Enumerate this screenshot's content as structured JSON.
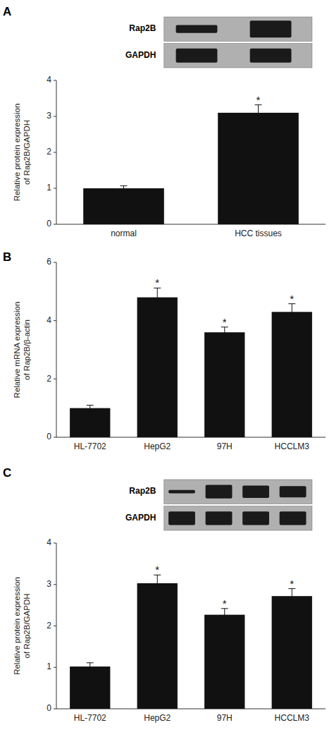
{
  "chart_data": [
    {
      "type": "bar",
      "title": "A",
      "categories": [
        "normal",
        "HCC tissues"
      ],
      "values": [
        1.0,
        3.1
      ],
      "errors": [
        0.07,
        0.22
      ],
      "annotations": [
        null,
        "*"
      ],
      "ylabel": "Relative protein expression\nof Rap2B/GAPDH",
      "ylim": [
        0,
        4
      ],
      "yticks": [
        0,
        1,
        2,
        3,
        4
      ],
      "color": "#111111",
      "grid": false,
      "blot_labels": [
        "Rap2B",
        "GAPDH"
      ],
      "blot_bands": [
        [
          0.14,
          0.3
        ],
        [
          0.25,
          0.25
        ]
      ]
    },
    {
      "type": "bar",
      "title": "B",
      "categories": [
        "HL-7702",
        "HepG2",
        "97H",
        "HCCLM3"
      ],
      "values": [
        1.0,
        4.8,
        3.6,
        4.3
      ],
      "errors": [
        0.1,
        0.32,
        0.18,
        0.28
      ],
      "annotations": [
        null,
        "*",
        "*",
        "*"
      ],
      "ylabel": "Relative mRNA expression\nof Rap2B/β-actin",
      "ylim": [
        0,
        6
      ],
      "yticks": [
        0,
        2,
        4,
        6
      ],
      "color": "#111111",
      "grid": false
    },
    {
      "type": "bar",
      "title": "C",
      "categories": [
        "HL-7702",
        "HepG2",
        "97H",
        "HCCLM3"
      ],
      "values": [
        1.02,
        3.03,
        2.27,
        2.72
      ],
      "errors": [
        0.09,
        0.2,
        0.15,
        0.18
      ],
      "annotations": [
        null,
        "*",
        "*",
        "*"
      ],
      "ylabel": "Relative protein expression\nof Rap2B/GAPDH",
      "ylim": [
        0,
        4
      ],
      "yticks": [
        0,
        1,
        2,
        3,
        4
      ],
      "color": "#111111",
      "grid": false,
      "blot_labels": [
        "Rap2B",
        "GAPDH"
      ],
      "blot_bands": [
        [
          0.06,
          0.24,
          0.22,
          0.2
        ],
        [
          0.24,
          0.24,
          0.24,
          0.24
        ]
      ]
    }
  ]
}
